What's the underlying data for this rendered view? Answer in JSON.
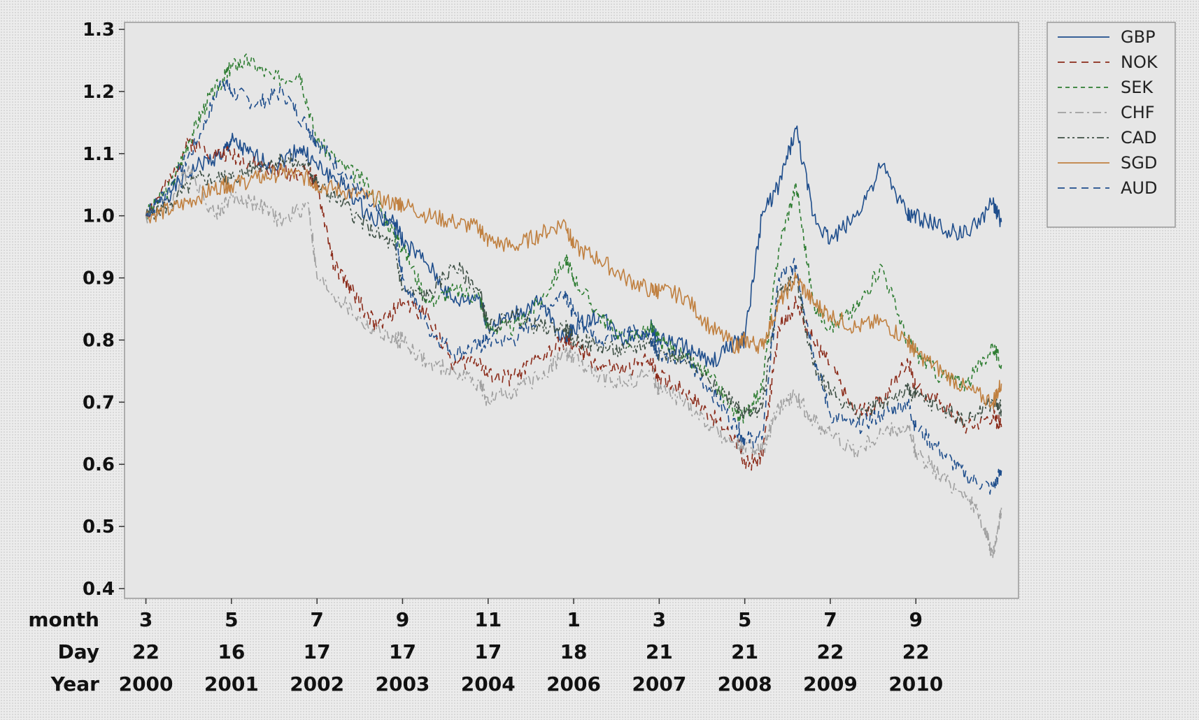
{
  "chart_data": {
    "type": "line",
    "title": "",
    "ylim": [
      0.4,
      1.3
    ],
    "yticks": [
      0.4,
      0.5,
      0.6,
      0.7,
      0.8,
      0.9,
      1.0,
      1.1,
      1.2,
      1.3
    ],
    "grid": false,
    "legend_position": "right-top",
    "x_axis_rows": [
      {
        "label": "month",
        "values": [
          "3",
          "5",
          "7",
          "9",
          "11",
          "1",
          "3",
          "5",
          "7",
          "9"
        ]
      },
      {
        "label": "Day",
        "values": [
          "22",
          "16",
          "17",
          "17",
          "17",
          "18",
          "21",
          "21",
          "22",
          "22"
        ]
      },
      {
        "label": "Year",
        "values": [
          "2000",
          "2001",
          "2002",
          "2003",
          "2004",
          "2006",
          "2007",
          "2008",
          "2009",
          "2010"
        ]
      }
    ],
    "x_tick_positions": [
      0,
      1,
      2,
      3,
      4,
      5,
      6,
      7,
      8,
      9
    ],
    "xlim": [
      -0.25,
      10.2
    ],
    "series": [
      {
        "name": "GBP",
        "color": "#1f4e8c",
        "dash": "",
        "x": [
          0,
          0.3,
          0.6,
          0.9,
          1.0,
          1.2,
          1.5,
          1.8,
          2.0,
          2.3,
          2.6,
          2.9,
          3.0,
          3.3,
          3.6,
          3.9,
          4.0,
          4.3,
          4.6,
          4.9,
          5.0,
          5.3,
          5.6,
          5.9,
          6.0,
          6.3,
          6.6,
          6.9,
          7.0,
          7.2,
          7.4,
          7.6,
          7.8,
          8.0,
          8.3,
          8.6,
          8.9,
          9.0,
          9.3,
          9.6,
          9.9,
          10.0
        ],
        "y": [
          1.0,
          1.04,
          1.08,
          1.1,
          1.12,
          1.1,
          1.08,
          1.11,
          1.08,
          1.05,
          1.0,
          0.99,
          0.96,
          0.92,
          0.86,
          0.87,
          0.82,
          0.84,
          0.86,
          0.8,
          0.82,
          0.84,
          0.8,
          0.82,
          0.8,
          0.79,
          0.76,
          0.8,
          0.8,
          1.0,
          1.05,
          1.14,
          1.0,
          0.96,
          1.0,
          1.08,
          1.0,
          1.0,
          0.98,
          0.97,
          1.02,
          0.99
        ]
      },
      {
        "name": "NOK",
        "color": "#8b2b1a",
        "dash": "10,7",
        "x": [
          0,
          0.3,
          0.5,
          0.8,
          1.0,
          1.3,
          1.6,
          1.9,
          2.0,
          2.2,
          2.4,
          2.7,
          3.0,
          3.3,
          3.6,
          3.9,
          4.0,
          4.3,
          4.6,
          4.9,
          5.0,
          5.3,
          5.6,
          5.9,
          6.0,
          6.3,
          6.6,
          6.9,
          7.0,
          7.2,
          7.4,
          7.6,
          7.8,
          8.0,
          8.3,
          8.6,
          8.9,
          9.0,
          9.3,
          9.6,
          9.9,
          10.0
        ],
        "y": [
          1.0,
          1.06,
          1.12,
          1.1,
          1.1,
          1.08,
          1.07,
          1.07,
          1.05,
          0.92,
          0.88,
          0.82,
          0.86,
          0.84,
          0.76,
          0.77,
          0.74,
          0.74,
          0.77,
          0.8,
          0.79,
          0.76,
          0.75,
          0.77,
          0.74,
          0.72,
          0.68,
          0.64,
          0.6,
          0.61,
          0.82,
          0.86,
          0.8,
          0.76,
          0.68,
          0.7,
          0.77,
          0.72,
          0.7,
          0.66,
          0.68,
          0.66
        ]
      },
      {
        "name": "SEK",
        "color": "#2e7d32",
        "dash": "6,5",
        "x": [
          0,
          0.3,
          0.5,
          0.7,
          0.9,
          1.0,
          1.2,
          1.5,
          1.8,
          2.0,
          2.3,
          2.6,
          2.9,
          3.0,
          3.3,
          3.6,
          3.9,
          4.0,
          4.3,
          4.6,
          4.9,
          5.0,
          5.3,
          5.6,
          5.9,
          6.0,
          6.3,
          6.6,
          6.9,
          7.0,
          7.2,
          7.4,
          7.6,
          7.8,
          8.0,
          8.3,
          8.6,
          8.9,
          9.0,
          9.3,
          9.6,
          9.9,
          10.0
        ],
        "y": [
          1.0,
          1.05,
          1.12,
          1.18,
          1.22,
          1.24,
          1.25,
          1.22,
          1.23,
          1.12,
          1.08,
          1.05,
          0.97,
          0.95,
          0.86,
          0.88,
          0.87,
          0.82,
          0.82,
          0.86,
          0.93,
          0.9,
          0.84,
          0.8,
          0.82,
          0.8,
          0.77,
          0.74,
          0.68,
          0.68,
          0.72,
          0.95,
          1.05,
          0.86,
          0.82,
          0.85,
          0.92,
          0.8,
          0.78,
          0.74,
          0.73,
          0.79,
          0.76
        ]
      },
      {
        "name": "CHF",
        "color": "#a0a0a0",
        "dash": "12,5,3,5",
        "x": [
          0,
          0.3,
          0.5,
          0.8,
          1.0,
          1.3,
          1.6,
          1.9,
          2.0,
          2.3,
          2.6,
          2.9,
          3.0,
          3.3,
          3.6,
          3.9,
          4.0,
          4.3,
          4.6,
          4.9,
          5.0,
          5.3,
          5.6,
          5.9,
          6.0,
          6.3,
          6.6,
          6.9,
          7.0,
          7.2,
          7.4,
          7.6,
          7.8,
          8.0,
          8.3,
          8.6,
          8.9,
          9.0,
          9.3,
          9.6,
          9.8,
          9.9,
          10.0
        ],
        "y": [
          1.0,
          1.02,
          1.08,
          1.0,
          1.03,
          1.02,
          0.99,
          1.02,
          0.9,
          0.86,
          0.82,
          0.8,
          0.8,
          0.76,
          0.75,
          0.73,
          0.7,
          0.72,
          0.74,
          0.78,
          0.77,
          0.74,
          0.73,
          0.75,
          0.72,
          0.7,
          0.66,
          0.63,
          0.63,
          0.62,
          0.69,
          0.71,
          0.67,
          0.65,
          0.62,
          0.65,
          0.66,
          0.62,
          0.58,
          0.55,
          0.5,
          0.45,
          0.53
        ]
      },
      {
        "name": "CAD",
        "color": "#3d4f44",
        "dash": "10,4,3,4,3,4",
        "x": [
          0,
          0.3,
          0.6,
          0.9,
          1.0,
          1.3,
          1.6,
          1.9,
          2.0,
          2.3,
          2.6,
          2.9,
          3.0,
          3.3,
          3.6,
          3.9,
          4.0,
          4.3,
          4.6,
          4.9,
          5.0,
          5.3,
          5.6,
          5.9,
          6.0,
          6.3,
          6.6,
          6.9,
          7.0,
          7.2,
          7.4,
          7.6,
          7.8,
          8.0,
          8.3,
          8.6,
          8.9,
          9.0,
          9.3,
          9.6,
          9.9,
          10.0
        ],
        "y": [
          1.0,
          1.02,
          1.06,
          1.06,
          1.06,
          1.08,
          1.09,
          1.08,
          1.05,
          1.02,
          0.98,
          0.95,
          0.88,
          0.87,
          0.92,
          0.88,
          0.82,
          0.84,
          0.82,
          0.82,
          0.8,
          0.79,
          0.78,
          0.8,
          0.78,
          0.77,
          0.73,
          0.7,
          0.68,
          0.69,
          0.88,
          0.9,
          0.76,
          0.72,
          0.68,
          0.7,
          0.72,
          0.71,
          0.69,
          0.67,
          0.7,
          0.69
        ]
      },
      {
        "name": "SGD",
        "color": "#c08040",
        "dash": "",
        "x": [
          0,
          0.3,
          0.6,
          0.9,
          1.0,
          1.3,
          1.6,
          1.9,
          2.0,
          2.3,
          2.6,
          2.9,
          3.0,
          3.3,
          3.6,
          3.9,
          4.0,
          4.3,
          4.6,
          4.9,
          5.0,
          5.3,
          5.6,
          5.9,
          6.0,
          6.3,
          6.6,
          6.9,
          7.0,
          7.2,
          7.4,
          7.6,
          7.8,
          8.0,
          8.3,
          8.6,
          8.9,
          9.0,
          9.3,
          9.6,
          9.9,
          10.0
        ],
        "y": [
          1.0,
          1.01,
          1.03,
          1.05,
          1.05,
          1.06,
          1.07,
          1.06,
          1.05,
          1.04,
          1.03,
          1.02,
          1.02,
          1.0,
          0.99,
          0.98,
          0.96,
          0.95,
          0.97,
          0.99,
          0.95,
          0.93,
          0.9,
          0.88,
          0.88,
          0.87,
          0.82,
          0.79,
          0.8,
          0.79,
          0.86,
          0.9,
          0.86,
          0.84,
          0.82,
          0.83,
          0.8,
          0.78,
          0.75,
          0.72,
          0.7,
          0.73
        ]
      },
      {
        "name": "AUD",
        "color": "#1f4e8c",
        "dash": "10,7",
        "x": [
          0,
          0.3,
          0.6,
          0.9,
          1.0,
          1.3,
          1.6,
          1.9,
          2.0,
          2.3,
          2.6,
          2.9,
          3.0,
          3.3,
          3.6,
          3.9,
          4.0,
          4.3,
          4.6,
          4.9,
          5.0,
          5.3,
          5.6,
          5.9,
          6.0,
          6.3,
          6.6,
          6.9,
          7.0,
          7.2,
          7.4,
          7.6,
          7.8,
          8.0,
          8.3,
          8.6,
          8.9,
          9.0,
          9.3,
          9.6,
          9.9,
          10.0
        ],
        "y": [
          1.0,
          1.05,
          1.12,
          1.22,
          1.2,
          1.18,
          1.2,
          1.14,
          1.12,
          1.07,
          1.02,
          0.98,
          0.9,
          0.82,
          0.78,
          0.79,
          0.8,
          0.8,
          0.84,
          0.88,
          0.84,
          0.8,
          0.82,
          0.8,
          0.78,
          0.77,
          0.72,
          0.66,
          0.64,
          0.64,
          0.9,
          0.92,
          0.78,
          0.68,
          0.66,
          0.68,
          0.7,
          0.66,
          0.62,
          0.58,
          0.56,
          0.59
        ]
      }
    ]
  }
}
